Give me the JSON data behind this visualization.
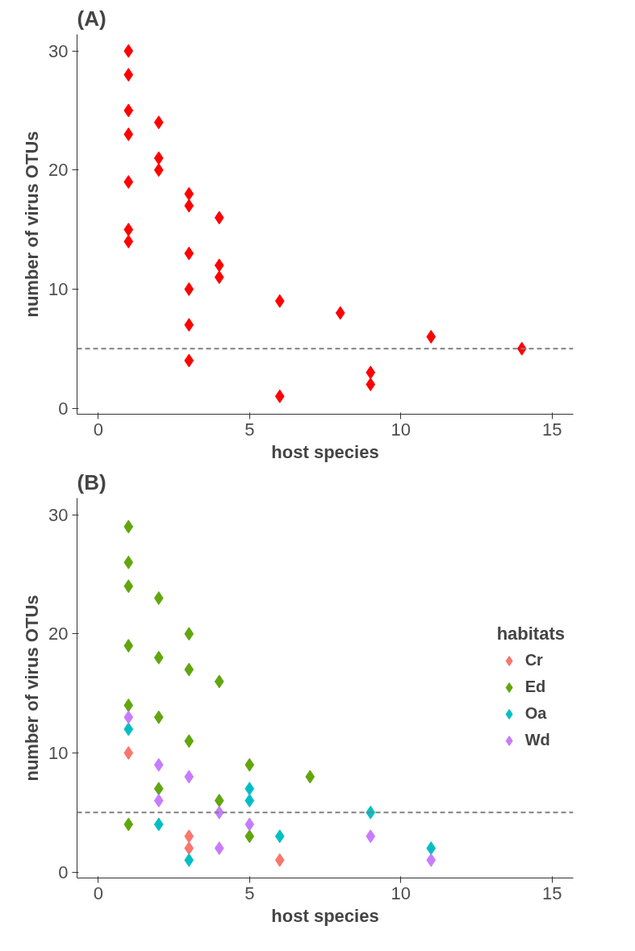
{
  "chart_data": [
    {
      "type": "scatter",
      "title": "(A)",
      "xlabel": "host species",
      "ylabel": "number of virus OTUs",
      "xlim": [
        -0.7,
        15.7
      ],
      "ylim": [
        -0.5,
        31.4
      ],
      "xticks": [
        0,
        5,
        10,
        15
      ],
      "yticks": [
        0,
        10,
        20,
        30
      ],
      "grid": false,
      "legend": false,
      "marker": "diamond",
      "series": [
        {
          "color": "#ff0000",
          "x": [
            1,
            1,
            1,
            1,
            1,
            1,
            1,
            2,
            2,
            2,
            3,
            3,
            3,
            3,
            3,
            3,
            4,
            4,
            4,
            6,
            6,
            8,
            9,
            9,
            11,
            14
          ],
          "values": [
            30,
            28,
            25,
            23,
            19,
            15,
            14,
            24,
            21,
            20,
            18,
            17,
            13,
            10,
            7,
            4,
            16,
            12,
            11,
            9,
            1,
            8,
            3,
            2,
            6,
            5
          ]
        }
      ],
      "ref_lines": [
        {
          "axis": "y",
          "value": 5,
          "color": "#808080",
          "line_style": "dashed"
        }
      ]
    },
    {
      "type": "scatter",
      "title": "(B)",
      "xlabel": "host species",
      "ylabel": "number of virus OTUs",
      "legend_title": "habitats",
      "xlim": [
        -0.7,
        15.7
      ],
      "ylim": [
        -0.5,
        31.4
      ],
      "xticks": [
        0,
        5,
        10,
        15
      ],
      "yticks": [
        0,
        10,
        20,
        30
      ],
      "grid": false,
      "legend": "right",
      "marker": "diamond",
      "series": [
        {
          "name": "Cr",
          "color": "#f8766d",
          "x": [
            1,
            3,
            3,
            6
          ],
          "values": [
            10,
            3,
            2,
            1
          ]
        },
        {
          "name": "Ed",
          "color": "#61a60e",
          "x": [
            1,
            1,
            1,
            1,
            1,
            1,
            2,
            2,
            2,
            2,
            3,
            3,
            3,
            4,
            4,
            5,
            5,
            7
          ],
          "values": [
            29,
            26,
            24,
            19,
            14,
            4,
            23,
            18,
            13,
            7,
            20,
            17,
            11,
            16,
            6,
            9,
            3,
            8
          ]
        },
        {
          "name": "Oa",
          "color": "#00bfc4",
          "x": [
            1,
            2,
            3,
            5,
            5,
            6,
            9,
            11
          ],
          "values": [
            12,
            4,
            1,
            7,
            6,
            3,
            5,
            2
          ]
        },
        {
          "name": "Wd",
          "color": "#c77cff",
          "x": [
            1,
            2,
            2,
            3,
            4,
            4,
            5,
            9,
            11
          ],
          "values": [
            13,
            9,
            6,
            8,
            5,
            2,
            4,
            3,
            1
          ]
        }
      ],
      "ref_lines": [
        {
          "axis": "y",
          "value": 5,
          "color": "#808080",
          "line_style": "dashed"
        }
      ]
    }
  ]
}
